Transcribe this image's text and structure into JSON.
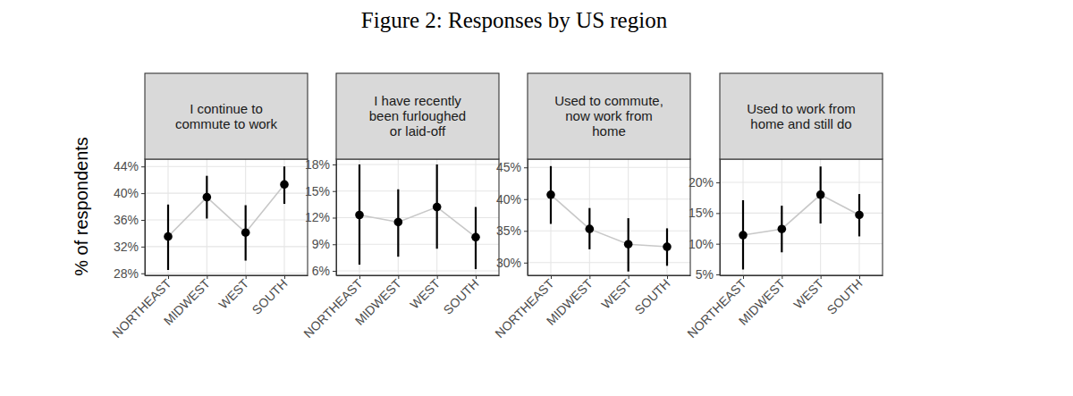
{
  "title": "Figure 2: Responses by US region",
  "chart_data": [
    {
      "type": "line",
      "title": "I continue to\ncommute to work",
      "y_label": "% of respondents",
      "categories": [
        "NORTHEAST",
        "MIDWEST",
        "WEST",
        "SOUTH"
      ],
      "values": [
        33.5,
        39.4,
        34.1,
        41.3
      ],
      "lower": [
        28.5,
        36.2,
        29.9,
        38.4
      ],
      "upper": [
        38.3,
        42.6,
        38.2,
        44.0
      ],
      "color": "#000000",
      "marker": "circle",
      "line_style": "solid",
      "ylim": [
        27.7,
        45.1
      ],
      "yticks": [
        {
          "value": 28,
          "label": "28%"
        },
        {
          "value": 32,
          "label": "32%"
        },
        {
          "value": 36,
          "label": "36%"
        },
        {
          "value": 40,
          "label": "40%"
        },
        {
          "value": 44,
          "label": "44%"
        }
      ],
      "grid": true
    },
    {
      "type": "line",
      "title": "I have recently\nbeen furloughed\nor laid-off",
      "categories": [
        "NORTHEAST",
        "MIDWEST",
        "WEST",
        "SOUTH"
      ],
      "values": [
        12.3,
        11.5,
        13.2,
        9.8
      ],
      "lower": [
        6.7,
        7.6,
        8.5,
        6.2
      ],
      "upper": [
        18.0,
        15.2,
        18.0,
        13.2
      ],
      "color": "#000000",
      "marker": "circle",
      "line_style": "solid",
      "ylim": [
        5.5,
        18.6
      ],
      "yticks": [
        {
          "value": 6,
          "label": "6%"
        },
        {
          "value": 9,
          "label": "9%"
        },
        {
          "value": 12,
          "label": "12%"
        },
        {
          "value": 15,
          "label": "15%"
        },
        {
          "value": 18,
          "label": "18%"
        }
      ],
      "grid": true
    },
    {
      "type": "line",
      "title": "Used to commute,\nnow work from\nhome",
      "categories": [
        "NORTHEAST",
        "MIDWEST",
        "WEST",
        "SOUTH"
      ],
      "values": [
        40.7,
        35.3,
        32.9,
        32.5
      ],
      "lower": [
        36.1,
        32.1,
        28.6,
        29.5
      ],
      "upper": [
        45.2,
        38.6,
        37.0,
        35.4
      ],
      "color": "#000000",
      "marker": "circle",
      "line_style": "solid",
      "ylim": [
        28.0,
        46.3
      ],
      "yticks": [
        {
          "value": 30,
          "label": "30%"
        },
        {
          "value": 35,
          "label": "35%"
        },
        {
          "value": 40,
          "label": "40%"
        },
        {
          "value": 45,
          "label": "45%"
        }
      ],
      "grid": true
    },
    {
      "type": "line",
      "title": "Used to work from\nhome and still do",
      "categories": [
        "NORTHEAST",
        "MIDWEST",
        "WEST",
        "SOUTH"
      ],
      "values": [
        11.4,
        12.4,
        18.0,
        14.7
      ],
      "lower": [
        5.8,
        8.6,
        13.3,
        11.2
      ],
      "upper": [
        17.1,
        16.2,
        22.6,
        18.1
      ],
      "color": "#000000",
      "marker": "circle",
      "line_style": "solid",
      "ylim": [
        4.85,
        23.8
      ],
      "yticks": [
        {
          "value": 5,
          "label": "5%"
        },
        {
          "value": 10,
          "label": "10%"
        },
        {
          "value": 15,
          "label": "15%"
        },
        {
          "value": 20,
          "label": "20%"
        }
      ],
      "grid": true
    }
  ]
}
